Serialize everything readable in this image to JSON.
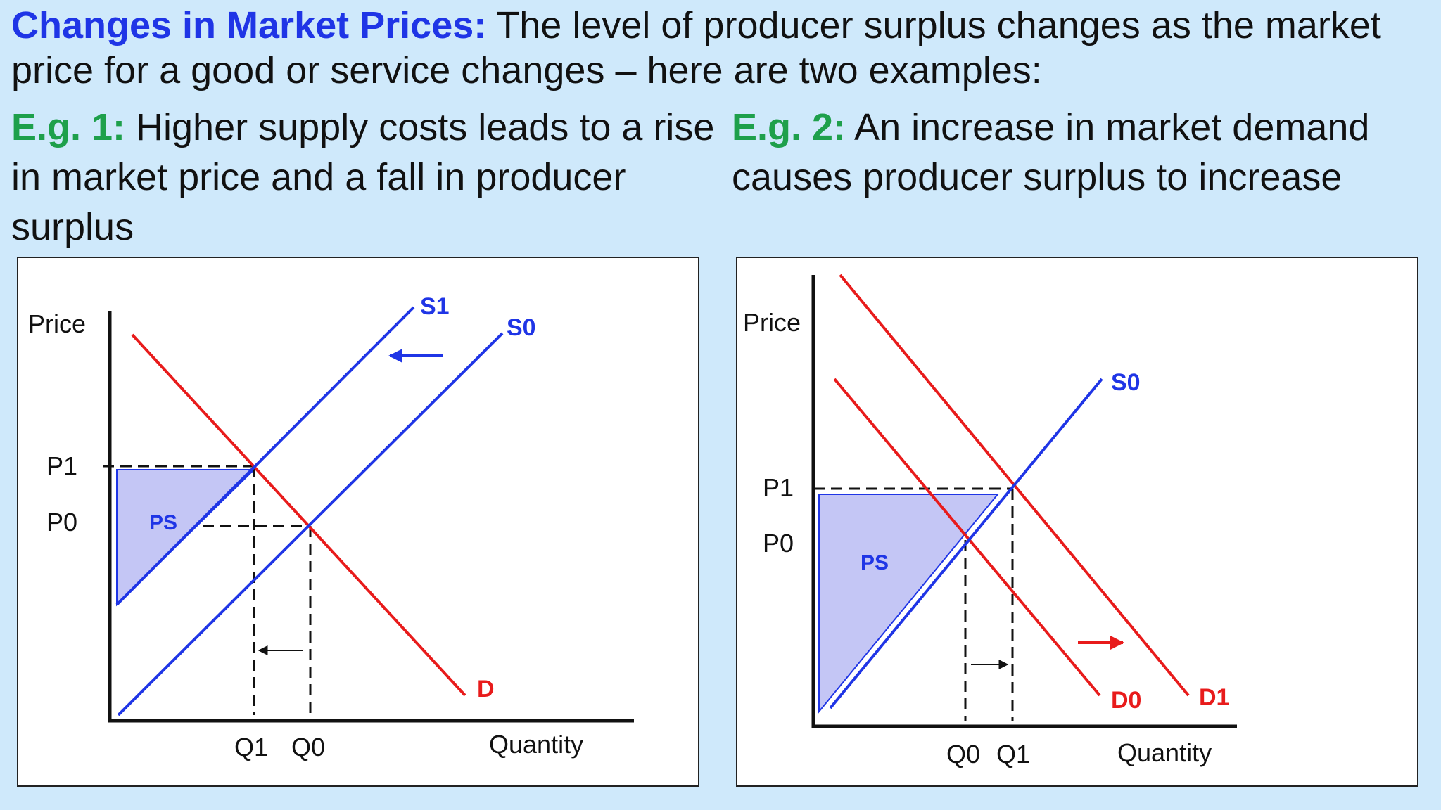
{
  "intro": {
    "lead": "Changes in Market Prices:",
    "text": " The level of producer surplus changes as the market price for a good or service changes – here are two examples:"
  },
  "examples": [
    {
      "lead": "E.g. 1:",
      "text": " Higher supply costs leads to a rise in market price and a fall in producer surplus"
    },
    {
      "lead": "E.g. 2:",
      "text": " An increase in market demand causes producer surplus to increase"
    }
  ],
  "diagram1": {
    "y_axis": "Price",
    "x_axis": "Quantity",
    "price_ticks": [
      "P1",
      "P0"
    ],
    "quantity_ticks": [
      "Q1",
      "Q0"
    ],
    "supply_new": "S1",
    "supply_old": "S0",
    "demand": "D",
    "surplus": "PS",
    "colors": {
      "supply": "#1f35e6",
      "demand": "#e81b1b",
      "surplus_fill": "#c4c6f5"
    }
  },
  "diagram2": {
    "y_axis": "Price",
    "x_axis": "Quantity",
    "price_ticks": [
      "P1",
      "P0"
    ],
    "quantity_ticks": [
      "Q0",
      "Q1"
    ],
    "supply": "S0",
    "demand_old": "D0",
    "demand_new": "D1",
    "surplus": "PS",
    "colors": {
      "supply": "#1f35e6",
      "demand": "#e81b1b",
      "surplus_fill": "#c4c6f5"
    }
  }
}
